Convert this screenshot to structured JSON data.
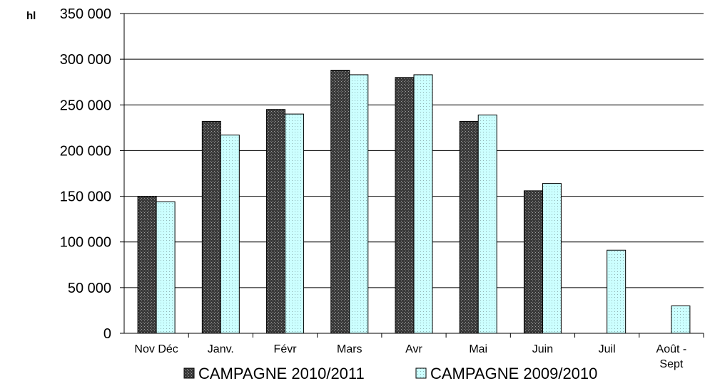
{
  "chart_data": {
    "type": "bar",
    "ylabel": "hl",
    "ylim": [
      0,
      350000
    ],
    "yticks": [
      0,
      50000,
      100000,
      150000,
      200000,
      250000,
      300000,
      350000
    ],
    "ytick_labels": [
      "0",
      "50 000",
      "100 000",
      "150 000",
      "200 000",
      "250 000",
      "300 000",
      "350 000"
    ],
    "categories": [
      [
        "Nov Déc"
      ],
      [
        "Janv."
      ],
      [
        "Févr"
      ],
      [
        "Mars"
      ],
      [
        "Avr"
      ],
      [
        "Mai"
      ],
      [
        "Juin"
      ],
      [
        "Juil"
      ],
      [
        "Août -",
        "Sept"
      ]
    ],
    "series": [
      {
        "name": "CAMPAGNE 2010/2011",
        "color": "#3a3a3a",
        "values": [
          150000,
          232000,
          245000,
          288000,
          280000,
          232000,
          156000,
          null,
          null
        ]
      },
      {
        "name": "CAMPAGNE 2009/2010",
        "color": "#ccffff",
        "values": [
          144000,
          217000,
          240000,
          283000,
          283000,
          239000,
          164000,
          91000,
          30000
        ]
      }
    ],
    "grid": true,
    "legend_position": "bottom"
  }
}
